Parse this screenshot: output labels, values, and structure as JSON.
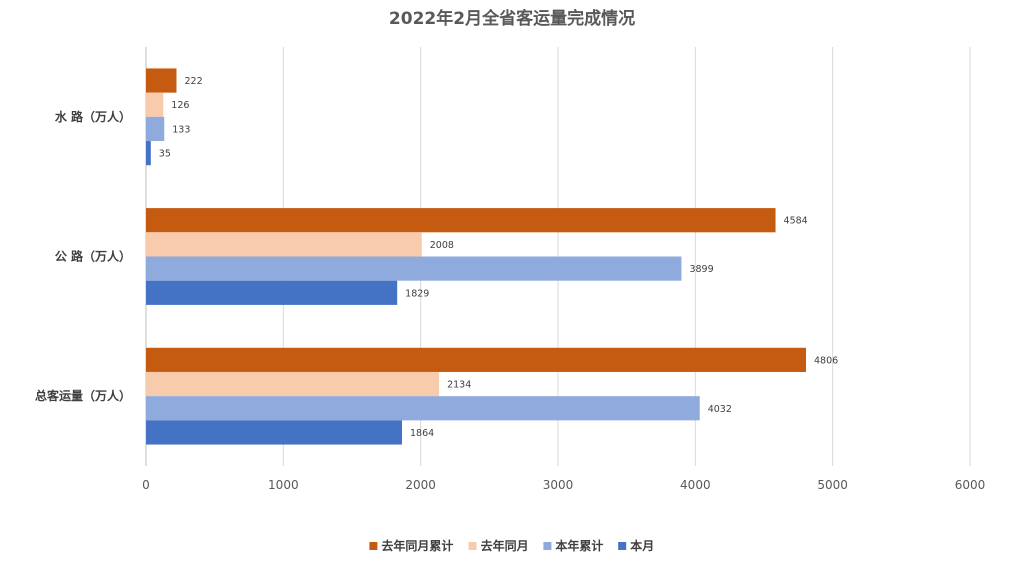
{
  "chart_data": {
    "type": "bar",
    "orientation": "horizontal",
    "title": "2022年2月全省客运量完成情况",
    "categories": [
      "水 路（万人）",
      "公 路（万人）",
      "总客运量（万人）"
    ],
    "series": [
      {
        "name": "去年同月累计",
        "color": "#C55A11",
        "values": [
          222,
          4584,
          4806
        ]
      },
      {
        "name": "去年同月",
        "color": "#F8CBAD",
        "values": [
          126,
          2008,
          2134
        ]
      },
      {
        "name": "本年累计",
        "color": "#8FAADC",
        "values": [
          133,
          3899,
          4032
        ]
      },
      {
        "name": "本月",
        "color": "#4472C4",
        "values": [
          35,
          1829,
          1864
        ]
      }
    ],
    "xlim": [
      0,
      6000
    ],
    "xticks": [
      0,
      1000,
      2000,
      3000,
      4000,
      5000,
      6000
    ],
    "grid": true,
    "legend": "bottom"
  }
}
